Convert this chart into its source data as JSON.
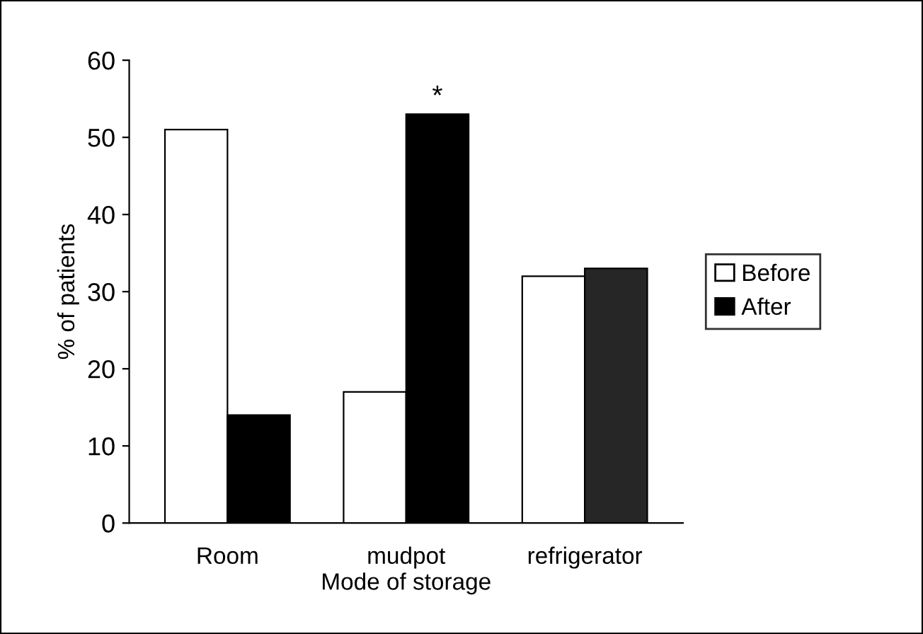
{
  "chart_data": {
    "type": "bar",
    "xlabel": "Mode of storage",
    "ylabel": "% of patients",
    "categories": [
      "Room",
      "mudpot",
      "refrigerator"
    ],
    "series": [
      {
        "name": "Before",
        "color": "#ffffff",
        "values": [
          51,
          17,
          32
        ]
      },
      {
        "name": "After",
        "color": "#000000",
        "colors": [
          "#000000",
          "#000000",
          "#262626"
        ],
        "values": [
          14,
          53,
          33
        ]
      }
    ],
    "ylim": [
      0,
      60
    ],
    "yticks": [
      0,
      10,
      20,
      30,
      40,
      50,
      60
    ],
    "grid": false,
    "legend": "right",
    "annotations": [
      {
        "text": "*",
        "x": "mudpot",
        "y": 53
      }
    ]
  }
}
